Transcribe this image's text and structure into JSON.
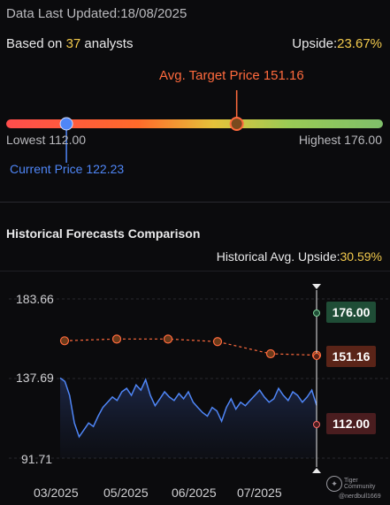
{
  "header": {
    "updated_label": "Data Last Updated:",
    "updated_date": "18/08/2025",
    "based_on_prefix": "Based on",
    "analyst_count": "37",
    "analyst_suffix": "analysts",
    "upside_label": "Upside:",
    "upside_value": "23.67%"
  },
  "target": {
    "avg_label": "Avg. Target Price",
    "avg_value": "151.16",
    "lowest_label": "Lowest",
    "lowest_value": "112.00",
    "highest_label": "Highest",
    "highest_value": "176.00",
    "current_label": "Current Price",
    "current_value": "122.23",
    "min": 112.0,
    "max": 176.0,
    "current": 122.23,
    "avg": 151.16
  },
  "history": {
    "section_title": "Historical Forecasts Comparison",
    "upside_label": "Historical Avg. Upside:",
    "upside_value": "30.59%"
  },
  "watermark": {
    "brand": "Tiger Community",
    "user": "@nerdbull1669"
  },
  "colors": {
    "background": "#0b0b0d",
    "price_line": "#4f86f7",
    "target_line": "#ff6a3d",
    "highlight": "#f2c94c",
    "high_badge": "#1f4d36",
    "avg_badge": "#5a2418",
    "low_badge": "#4a1d1f"
  },
  "chart_data": {
    "type": "line",
    "yticks": [
      "183.66",
      "137.69",
      "91.71"
    ],
    "ylim": [
      91.71,
      183.66
    ],
    "xticks": [
      "03/2025",
      "05/2025",
      "06/2025",
      "07/2025"
    ],
    "grid": true,
    "series": [
      {
        "style": "price",
        "values": [
          138,
          136,
          128,
          112,
          104,
          108,
          112,
          110,
          116,
          121,
          124,
          127,
          125,
          130,
          132,
          128,
          134,
          131,
          137,
          128,
          122,
          126,
          130,
          127,
          125,
          129,
          126,
          130,
          124,
          121,
          118,
          116,
          121,
          119,
          113,
          121,
          126,
          120,
          124,
          122,
          125,
          128,
          131,
          127,
          124,
          126,
          132,
          128,
          125,
          130,
          128,
          124,
          127,
          131,
          122.23
        ]
      },
      {
        "style": "avg_target",
        "values": [
          159.5,
          160.5,
          160.5,
          159,
          152,
          151.16
        ]
      }
    ],
    "badges": [
      "176.00",
      "151.16",
      "112.00"
    ]
  }
}
